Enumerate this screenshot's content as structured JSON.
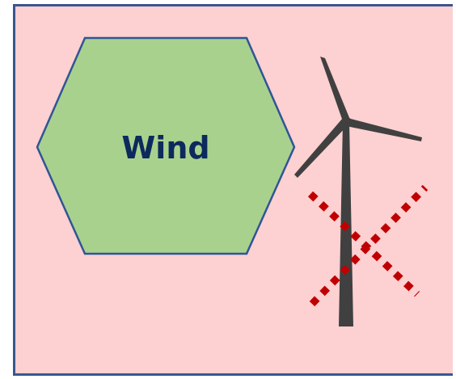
{
  "hexagon": {
    "label": "Wind",
    "fill": "#a9d18e",
    "stroke": "#2f5597",
    "text_color": "#0d2a5c"
  },
  "frame": {
    "background": "#fdd0d1",
    "border": "#3a5690"
  },
  "turbine": {
    "icon": "wind-turbine-icon",
    "color": "#404040"
  },
  "cross": {
    "icon": "dotted-x-mark-icon",
    "color": "#c00000"
  }
}
